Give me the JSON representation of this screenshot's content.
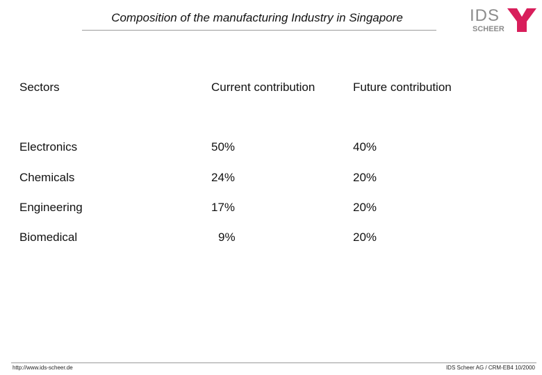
{
  "slide": {
    "title": "Composition of the manufacturing Industry in Singapore"
  },
  "logo": {
    "ids_text": "IDS",
    "scheer_text": "SCHEER",
    "icon": "ids-scheer-y-mark-icon",
    "color_gray": "#8c8c8c",
    "color_red": "#d81e5b"
  },
  "table": {
    "headers": [
      "Sectors",
      "Current contribution",
      "Future contribution"
    ],
    "rows": [
      {
        "sector": "Electronics",
        "current": "50%",
        "future": "40%"
      },
      {
        "sector": "Chemicals",
        "current": "24%",
        "future": "20%"
      },
      {
        "sector": "Engineering",
        "current": "17%",
        "future": "20%"
      },
      {
        "sector": "Biomedical",
        "current": "9%",
        "future": "20%"
      }
    ]
  },
  "footer": {
    "url": "http://www.ids-scheer.de",
    "credit": "IDS Scheer AG / CRM-EB4 10/2000"
  }
}
